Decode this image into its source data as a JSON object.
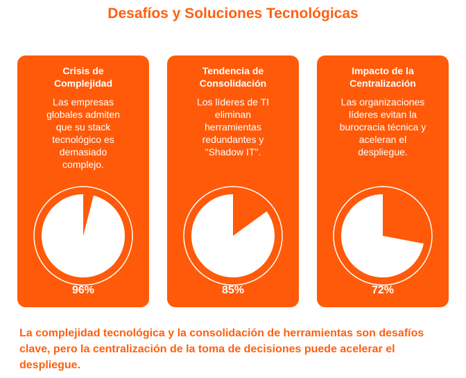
{
  "title": "Desafíos y Soluciones Tecnológicas",
  "cards": [
    {
      "title": "Crisis de\nComplejidad",
      "description": "Las empresas\nglobales admiten\nque su stack\ntecnológico es\ndemasiado\ncomplejo.",
      "value_label": "96%"
    },
    {
      "title": "Tendencia de\nConsolidación",
      "description": "Los líderes de TI\neliminan\nherramientas\nredundantes y\n\"Shadow IT\".",
      "value_label": "85%"
    },
    {
      "title": "Impacto de la\nCentralización",
      "description": "Las organizaciones\nlíderes evitan la\nburocracia técnica y\naceleran el\ndespliegue.",
      "value_label": "72%"
    }
  ],
  "chart_data": [
    {
      "type": "pie",
      "values": [
        96,
        4
      ]
    },
    {
      "type": "pie",
      "values": [
        85,
        15
      ]
    },
    {
      "type": "pie",
      "values": [
        72,
        28
      ]
    }
  ],
  "colors": {
    "accent": "#ff5a0a",
    "pie_fill": "#ffffff"
  },
  "summary": "La complejidad tecnológica y la consolidación de herramientas son desafíos clave, pero la centralización de la toma de decisiones puede acelerar el despliegue."
}
